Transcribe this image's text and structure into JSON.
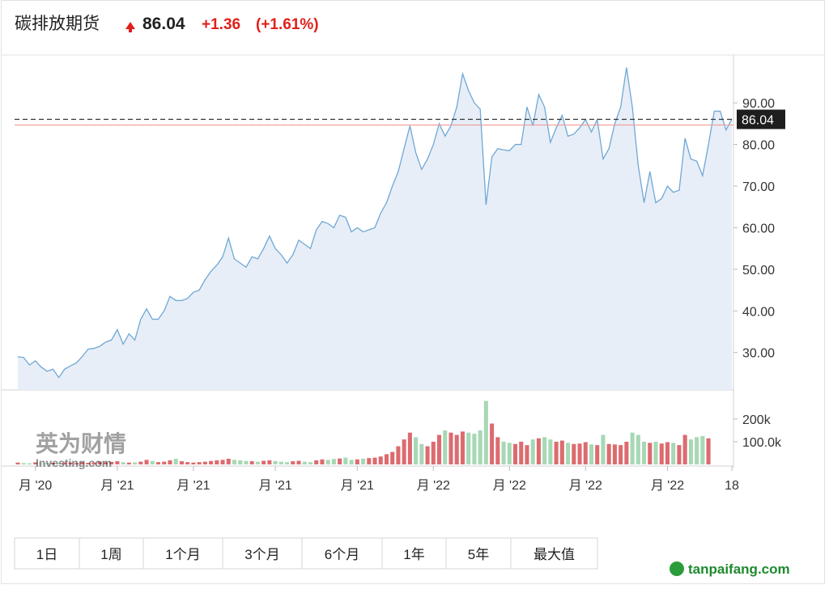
{
  "header": {
    "title": "碳排放期货",
    "change": "+1.36",
    "change_pct": "(+1.61%)"
  },
  "chart_data": {
    "type": "area",
    "last_value": 86.04,
    "prev_close": 84.68,
    "categories": [
      null,
      null,
      null,
      "月 '20",
      null,
      null,
      null,
      null,
      null,
      null,
      null,
      null,
      null,
      null,
      null,
      null,
      null,
      "月 '21",
      null,
      null,
      null,
      null,
      null,
      null,
      null,
      null,
      null,
      null,
      null,
      null,
      "月 '21",
      null,
      null,
      null,
      null,
      null,
      null,
      null,
      null,
      null,
      null,
      null,
      null,
      null,
      "月 '21",
      null,
      null,
      null,
      null,
      null,
      null,
      null,
      null,
      null,
      null,
      null,
      null,
      null,
      "月 '21",
      null,
      null,
      null,
      null,
      null,
      null,
      null,
      null,
      null,
      null,
      null,
      null,
      "月 '22",
      null,
      null,
      null,
      null,
      null,
      null,
      null,
      null,
      null,
      null,
      null,
      null,
      "月 '22",
      null,
      null,
      null,
      null,
      null,
      null,
      null,
      null,
      null,
      null,
      null,
      null,
      "月 '22",
      null,
      null,
      null,
      null,
      null,
      null,
      null,
      null,
      null,
      null,
      null,
      null,
      null,
      "月 '22",
      null,
      null,
      null,
      null,
      null,
      null,
      null,
      null,
      null,
      null,
      "18"
    ],
    "series": [
      {
        "name": "碳排放期货",
        "color": "#6fa8d6",
        "fill": "#e8eef7",
        "values": [
          29,
          28.8,
          27,
          28,
          26.5,
          25.5,
          26,
          24,
          26,
          26.8,
          27.5,
          29,
          30.8,
          31,
          31.5,
          32.5,
          33,
          35.5,
          32,
          34.5,
          33,
          38,
          40.5,
          38,
          38,
          40,
          43.5,
          42.5,
          42.5,
          43,
          44.5,
          45,
          47.5,
          49.5,
          51,
          53,
          57.5,
          52.5,
          51.5,
          50.5,
          53,
          52.5,
          55,
          58,
          55,
          53.5,
          51.5,
          53.5,
          57,
          56,
          55,
          59.5,
          61.5,
          61,
          60,
          63,
          62.5,
          59,
          60,
          59,
          59.5,
          60,
          63.5,
          66,
          70,
          73.5,
          79,
          84.5,
          78,
          74,
          76.5,
          80,
          85,
          82,
          84.5,
          89,
          97,
          93,
          90,
          88.5,
          65.5,
          77,
          79,
          78.7,
          78.5,
          80,
          80,
          89,
          84.5,
          92,
          89,
          80.5,
          84,
          87,
          82,
          82.5,
          84,
          86,
          83,
          86,
          76.5,
          79,
          85,
          89,
          98.5,
          89,
          75,
          66,
          73.5,
          66,
          67,
          70,
          68.5,
          69,
          81.5,
          76.5,
          76,
          72.5,
          80,
          88,
          88,
          83.5,
          86.04
        ]
      }
    ],
    "ylim": [
      21,
      101.5
    ],
    "yticks": [
      {
        "value": 30,
        "label": "30.00"
      },
      {
        "value": 40,
        "label": "40.00"
      },
      {
        "value": 50,
        "label": "50.00"
      },
      {
        "value": 60,
        "label": "60.00"
      },
      {
        "value": 70,
        "label": "70.00"
      },
      {
        "value": 80,
        "label": "80.00"
      },
      {
        "value": 90,
        "label": "90.00"
      }
    ],
    "volume": {
      "up_color": "#dc6b6f",
      "down_color": "#a7d8b5",
      "values": [
        8000,
        6000,
        5000,
        9000,
        4000,
        6000,
        7000,
        5000,
        9000,
        8000,
        6000,
        10000,
        7000,
        8000,
        12000,
        9000,
        11000,
        14000,
        10000,
        8000,
        9000,
        12000,
        20000,
        15000,
        10000,
        12000,
        18000,
        25000,
        14000,
        10000,
        8000,
        10000,
        12000,
        15000,
        18000,
        20000,
        25000,
        20000,
        18000,
        15000,
        14000,
        12000,
        16000,
        18000,
        15000,
        12000,
        10000,
        14000,
        16000,
        12000,
        10000,
        18000,
        22000,
        20000,
        24000,
        26000,
        30000,
        20000,
        22000,
        25000,
        28000,
        30000,
        35000,
        45000,
        55000,
        80000,
        110000,
        140000,
        120000,
        90000,
        80000,
        100000,
        130000,
        150000,
        140000,
        130000,
        145000,
        140000,
        135000,
        150000,
        280000,
        180000,
        120000,
        100000,
        95000,
        90000,
        100000,
        85000,
        110000,
        115000,
        120000,
        110000,
        100000,
        105000,
        95000,
        90000,
        92000,
        98000,
        88000,
        85000,
        130000,
        90000,
        88000,
        85000,
        100000,
        140000,
        130000,
        100000,
        95000,
        100000,
        92000,
        98000,
        95000,
        85000,
        130000,
        110000,
        120000,
        125000,
        115000,
        null,
        null,
        null,
        null
      ],
      "ylim": [
        0,
        328000
      ],
      "yticks": [
        {
          "value": 100000,
          "label": "100.0k"
        },
        {
          "value": 200000,
          "label": "200k"
        }
      ]
    }
  },
  "buttons": [
    "1日",
    "1周",
    "1个月",
    "3个月",
    "6个月",
    "1年",
    "5年",
    "最大值"
  ],
  "watermarks": {
    "cn": "英为财情",
    "en": "Investing.com",
    "site": "tanpaifang.com"
  }
}
